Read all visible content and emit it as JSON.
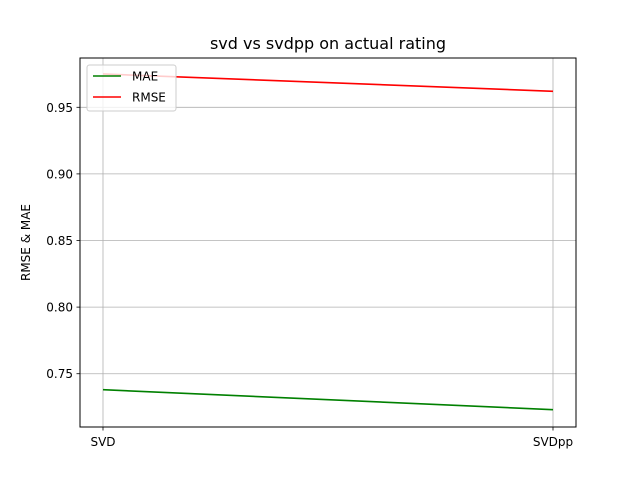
{
  "chart_data": {
    "type": "line",
    "title": "svd vs svdpp on actual rating",
    "xlabel": "",
    "ylabel": "RMSE & MAE",
    "categories": [
      "SVD",
      "SVDpp"
    ],
    "series": [
      {
        "name": "MAE",
        "values": [
          0.738,
          0.723
        ],
        "color": "#008000"
      },
      {
        "name": "RMSE",
        "values": [
          0.975,
          0.962
        ],
        "color": "#ff0000"
      }
    ],
    "ylim": [
      0.71,
      0.987
    ],
    "yticks": [
      "0.75",
      "0.80",
      "0.85",
      "0.90",
      "0.95"
    ],
    "grid": true,
    "legend": "upper-left"
  }
}
